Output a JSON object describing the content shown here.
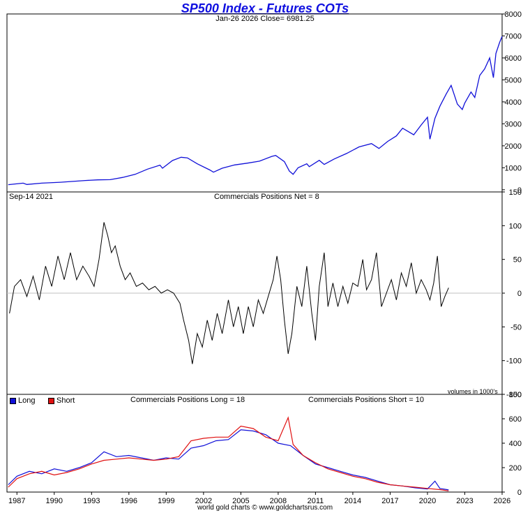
{
  "header": {
    "title": "SP500 Index - Futures COTs",
    "subtitle": "Jan-26  2026   Close= 6981.25"
  },
  "footer": {
    "credit": "world gold charts © www.goldchartsrus.com"
  },
  "colors": {
    "price": "#1010d8",
    "net": "#000000",
    "long": "#1010d8",
    "short": "#e01010",
    "title": "#1010e0"
  },
  "chart_data": [
    {
      "type": "line",
      "panel": "price",
      "title": "SP500 Index - Futures COTs",
      "subtitle": "Jan-26  2026   Close= 6981.25",
      "x_range": [
        1986.2,
        2026.0
      ],
      "ylim": [
        -100,
        8000
      ],
      "yticks": [
        0,
        1000,
        2000,
        3000,
        4000,
        5000,
        6000,
        7000,
        8000
      ],
      "series": [
        {
          "values": [
            [
              1986.3,
              230
            ],
            [
              1987.5,
              300
            ],
            [
              1987.8,
              240
            ],
            [
              1989.0,
              300
            ],
            [
              1990.5,
              340
            ],
            [
              1991.5,
              380
            ],
            [
              1992.5,
              420
            ],
            [
              1993.5,
              450
            ],
            [
              1994.5,
              460
            ],
            [
              1995.5,
              560
            ],
            [
              1996.5,
              700
            ],
            [
              1997.5,
              940
            ],
            [
              1998.5,
              1120
            ],
            [
              1998.7,
              980
            ],
            [
              1999.5,
              1330
            ],
            [
              2000.2,
              1480
            ],
            [
              2000.7,
              1450
            ],
            [
              2001.5,
              1180
            ],
            [
              2002.5,
              900
            ],
            [
              2002.8,
              800
            ],
            [
              2003.5,
              980
            ],
            [
              2004.5,
              1130
            ],
            [
              2005.5,
              1210
            ],
            [
              2006.5,
              1300
            ],
            [
              2007.5,
              1520
            ],
            [
              2007.8,
              1560
            ],
            [
              2008.5,
              1280
            ],
            [
              2008.9,
              850
            ],
            [
              2009.2,
              700
            ],
            [
              2009.6,
              1000
            ],
            [
              2010.3,
              1180
            ],
            [
              2010.5,
              1050
            ],
            [
              2011.3,
              1340
            ],
            [
              2011.7,
              1150
            ],
            [
              2012.5,
              1400
            ],
            [
              2013.5,
              1650
            ],
            [
              2014.5,
              1950
            ],
            [
              2015.5,
              2100
            ],
            [
              2016.1,
              1880
            ],
            [
              2016.8,
              2200
            ],
            [
              2017.5,
              2450
            ],
            [
              2018.0,
              2800
            ],
            [
              2018.9,
              2500
            ],
            [
              2019.5,
              2950
            ],
            [
              2020.0,
              3300
            ],
            [
              2020.2,
              2300
            ],
            [
              2020.6,
              3250
            ],
            [
              2021.0,
              3800
            ],
            [
              2021.5,
              4350
            ],
            [
              2021.9,
              4750
            ],
            [
              2022.4,
              3900
            ],
            [
              2022.8,
              3650
            ],
            [
              2023.0,
              3950
            ],
            [
              2023.5,
              4450
            ],
            [
              2023.8,
              4200
            ],
            [
              2024.2,
              5200
            ],
            [
              2024.6,
              5500
            ],
            [
              2025.0,
              6000
            ],
            [
              2025.3,
              5100
            ],
            [
              2025.5,
              6200
            ],
            [
              2025.8,
              6700
            ],
            [
              2026.0,
              6980
            ]
          ]
        }
      ]
    },
    {
      "type": "line",
      "panel": "net",
      "title": "Commercials Positions Net = 8",
      "date_label": "Sep-14  2021",
      "note": "volumes in 1000's",
      "x_range": [
        1986.2,
        2026.0
      ],
      "ylim": [
        -150,
        150
      ],
      "yticks": [
        -150,
        -100,
        -50,
        0,
        50,
        100,
        150
      ],
      "series": [
        {
          "values": [
            [
              1986.4,
              -30
            ],
            [
              1986.8,
              10
            ],
            [
              1987.3,
              20
            ],
            [
              1987.8,
              -5
            ],
            [
              1988.3,
              25
            ],
            [
              1988.8,
              -10
            ],
            [
              1989.3,
              40
            ],
            [
              1989.8,
              10
            ],
            [
              1990.3,
              55
            ],
            [
              1990.8,
              20
            ],
            [
              1991.3,
              60
            ],
            [
              1991.8,
              20
            ],
            [
              1992.3,
              40
            ],
            [
              1992.8,
              25
            ],
            [
              1993.2,
              10
            ],
            [
              1993.6,
              50
            ],
            [
              1994.0,
              105
            ],
            [
              1994.3,
              85
            ],
            [
              1994.6,
              60
            ],
            [
              1994.9,
              70
            ],
            [
              1995.3,
              40
            ],
            [
              1995.7,
              20
            ],
            [
              1996.1,
              30
            ],
            [
              1996.6,
              10
            ],
            [
              1997.1,
              15
            ],
            [
              1997.6,
              5
            ],
            [
              1998.1,
              10
            ],
            [
              1998.6,
              0
            ],
            [
              1999.1,
              5
            ],
            [
              1999.6,
              0
            ],
            [
              2000.1,
              -15
            ],
            [
              2000.4,
              -40
            ],
            [
              2000.8,
              -70
            ],
            [
              2001.1,
              -105
            ],
            [
              2001.5,
              -60
            ],
            [
              2001.9,
              -80
            ],
            [
              2002.3,
              -40
            ],
            [
              2002.7,
              -70
            ],
            [
              2003.1,
              -30
            ],
            [
              2003.5,
              -60
            ],
            [
              2004.0,
              -10
            ],
            [
              2004.4,
              -50
            ],
            [
              2004.8,
              -20
            ],
            [
              2005.2,
              -60
            ],
            [
              2005.6,
              -20
            ],
            [
              2006.0,
              -50
            ],
            [
              2006.4,
              -10
            ],
            [
              2006.8,
              -30
            ],
            [
              2007.2,
              -5
            ],
            [
              2007.6,
              20
            ],
            [
              2007.9,
              55
            ],
            [
              2008.2,
              20
            ],
            [
              2008.5,
              -40
            ],
            [
              2008.8,
              -90
            ],
            [
              2009.1,
              -60
            ],
            [
              2009.5,
              10
            ],
            [
              2009.9,
              -20
            ],
            [
              2010.3,
              40
            ],
            [
              2010.7,
              -30
            ],
            [
              2011.0,
              -70
            ],
            [
              2011.3,
              10
            ],
            [
              2011.7,
              60
            ],
            [
              2012.0,
              -20
            ],
            [
              2012.4,
              15
            ],
            [
              2012.8,
              -20
            ],
            [
              2013.2,
              10
            ],
            [
              2013.6,
              -15
            ],
            [
              2014.0,
              15
            ],
            [
              2014.4,
              10
            ],
            [
              2014.8,
              50
            ],
            [
              2015.1,
              5
            ],
            [
              2015.5,
              20
            ],
            [
              2015.9,
              60
            ],
            [
              2016.3,
              -20
            ],
            [
              2016.7,
              0
            ],
            [
              2017.1,
              20
            ],
            [
              2017.5,
              -10
            ],
            [
              2017.9,
              30
            ],
            [
              2018.3,
              10
            ],
            [
              2018.7,
              45
            ],
            [
              2019.1,
              0
            ],
            [
              2019.5,
              20
            ],
            [
              2019.9,
              5
            ],
            [
              2020.2,
              -10
            ],
            [
              2020.5,
              15
            ],
            [
              2020.8,
              55
            ],
            [
              2021.1,
              -20
            ],
            [
              2021.4,
              -5
            ],
            [
              2021.7,
              8
            ]
          ]
        }
      ]
    },
    {
      "type": "line",
      "panel": "long-short",
      "title_long": "Commercials Positions Long = 18",
      "title_short": "Commercials Positions Short = 10",
      "legend": [
        "Long",
        "Short"
      ],
      "legend_position": "top-left",
      "x_range": [
        1986.2,
        2026.0
      ],
      "ylim": [
        0,
        800
      ],
      "yticks": [
        0,
        200,
        400,
        600,
        800
      ],
      "xticks": [
        "1987",
        "1990",
        "1993",
        "1996",
        "1999",
        "2002",
        "2005",
        "2008",
        "2011",
        "2014",
        "2017",
        "2020",
        "2023",
        "2026"
      ],
      "series": [
        {
          "name": "Long",
          "values": [
            [
              1986.3,
              60
            ],
            [
              1987.0,
              130
            ],
            [
              1988.0,
              170
            ],
            [
              1989.0,
              150
            ],
            [
              1990.0,
              190
            ],
            [
              1991.0,
              170
            ],
            [
              1992.0,
              200
            ],
            [
              1993.0,
              240
            ],
            [
              1994.0,
              330
            ],
            [
              1995.0,
              290
            ],
            [
              1996.0,
              300
            ],
            [
              1997.0,
              280
            ],
            [
              1998.0,
              260
            ],
            [
              1999.0,
              280
            ],
            [
              2000.0,
              270
            ],
            [
              2001.0,
              360
            ],
            [
              2002.0,
              380
            ],
            [
              2003.0,
              420
            ],
            [
              2004.0,
              430
            ],
            [
              2005.0,
              510
            ],
            [
              2006.0,
              500
            ],
            [
              2007.0,
              470
            ],
            [
              2008.0,
              400
            ],
            [
              2009.0,
              380
            ],
            [
              2010.0,
              300
            ],
            [
              2011.0,
              230
            ],
            [
              2012.0,
              200
            ],
            [
              2013.0,
              170
            ],
            [
              2014.0,
              140
            ],
            [
              2015.0,
              120
            ],
            [
              2016.0,
              90
            ],
            [
              2017.0,
              60
            ],
            [
              2018.0,
              50
            ],
            [
              2019.0,
              35
            ],
            [
              2020.0,
              25
            ],
            [
              2020.6,
              90
            ],
            [
              2021.0,
              30
            ],
            [
              2021.7,
              18
            ]
          ]
        },
        {
          "name": "Short",
          "values": [
            [
              1986.3,
              40
            ],
            [
              1987.0,
              110
            ],
            [
              1988.0,
              150
            ],
            [
              1989.0,
              170
            ],
            [
              1990.0,
              140
            ],
            [
              1991.0,
              160
            ],
            [
              1992.0,
              190
            ],
            [
              1993.0,
              230
            ],
            [
              1994.0,
              260
            ],
            [
              1995.0,
              270
            ],
            [
              1996.0,
              280
            ],
            [
              1997.0,
              270
            ],
            [
              1998.0,
              260
            ],
            [
              1999.0,
              270
            ],
            [
              2000.0,
              290
            ],
            [
              2001.0,
              420
            ],
            [
              2002.0,
              440
            ],
            [
              2003.0,
              450
            ],
            [
              2004.0,
              450
            ],
            [
              2005.0,
              540
            ],
            [
              2006.0,
              520
            ],
            [
              2007.0,
              450
            ],
            [
              2008.0,
              420
            ],
            [
              2008.8,
              610
            ],
            [
              2009.2,
              390
            ],
            [
              2010.0,
              300
            ],
            [
              2011.0,
              240
            ],
            [
              2012.0,
              190
            ],
            [
              2013.0,
              160
            ],
            [
              2014.0,
              130
            ],
            [
              2015.0,
              110
            ],
            [
              2016.0,
              80
            ],
            [
              2017.0,
              60
            ],
            [
              2018.0,
              50
            ],
            [
              2019.0,
              40
            ],
            [
              2020.0,
              30
            ],
            [
              2021.0,
              20
            ],
            [
              2021.7,
              10
            ]
          ]
        }
      ]
    }
  ]
}
